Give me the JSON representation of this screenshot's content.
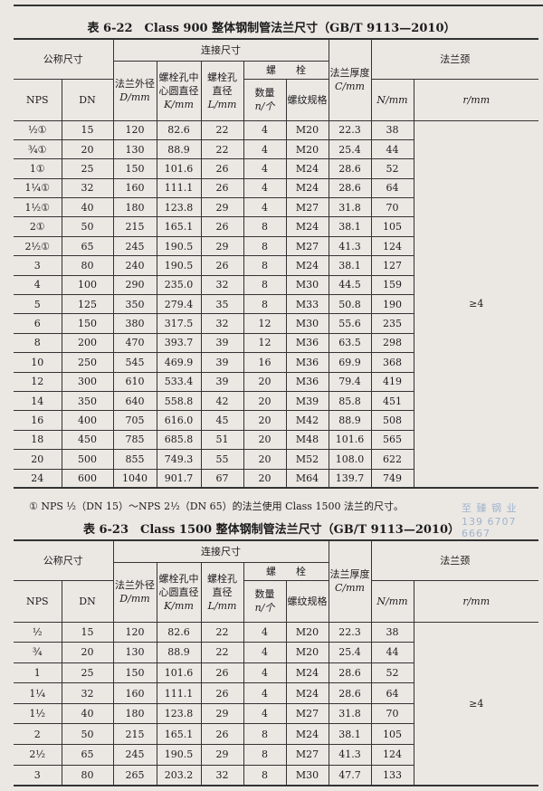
{
  "headers": {
    "nominal": "公称尺寸",
    "nps": "NPS",
    "dn": "DN",
    "connection": "连接尺寸",
    "outer_dia": "法兰外径",
    "outer_dia_unit": "D/mm",
    "bolt_circle_1": "螺栓孔中",
    "bolt_circle_2": "心圆直径",
    "bolt_circle_unit": "K/mm",
    "bolt_hole_1": "螺栓孔",
    "bolt_hole_2": "直径",
    "bolt_hole_unit": "L/mm",
    "bolt": "螺　　栓",
    "qty": "数量",
    "qty_unit": "n/个",
    "thread": "螺纹规格",
    "thickness": "法兰厚度",
    "thickness_unit": "C/mm",
    "neck": "法兰颈",
    "neck_n": "N/mm",
    "neck_r": "r/mm"
  },
  "table1": {
    "title": "表 6-22　Class 900 整体钢制管法兰尺寸（GB/T 9113—2010）",
    "r_value": "≥4",
    "rows": [
      [
        "½①",
        "15",
        "120",
        "82.6",
        "22",
        "4",
        "M20",
        "22.3",
        "38"
      ],
      [
        "¾①",
        "20",
        "130",
        "88.9",
        "22",
        "4",
        "M20",
        "25.4",
        "44"
      ],
      [
        "1①",
        "25",
        "150",
        "101.6",
        "26",
        "4",
        "M24",
        "28.6",
        "52"
      ],
      [
        "1¼①",
        "32",
        "160",
        "111.1",
        "26",
        "4",
        "M24",
        "28.6",
        "64"
      ],
      [
        "1½①",
        "40",
        "180",
        "123.8",
        "29",
        "4",
        "M27",
        "31.8",
        "70"
      ],
      [
        "2①",
        "50",
        "215",
        "165.1",
        "26",
        "8",
        "M24",
        "38.1",
        "105"
      ],
      [
        "2½①",
        "65",
        "245",
        "190.5",
        "29",
        "8",
        "M27",
        "41.3",
        "124"
      ],
      [
        "3",
        "80",
        "240",
        "190.5",
        "26",
        "8",
        "M24",
        "38.1",
        "127"
      ],
      [
        "4",
        "100",
        "290",
        "235.0",
        "32",
        "8",
        "M30",
        "44.5",
        "159"
      ],
      [
        "5",
        "125",
        "350",
        "279.4",
        "35",
        "8",
        "M33",
        "50.8",
        "190"
      ],
      [
        "6",
        "150",
        "380",
        "317.5",
        "32",
        "12",
        "M30",
        "55.6",
        "235"
      ],
      [
        "8",
        "200",
        "470",
        "393.7",
        "39",
        "12",
        "M36",
        "63.5",
        "298"
      ],
      [
        "10",
        "250",
        "545",
        "469.9",
        "39",
        "16",
        "M36",
        "69.9",
        "368"
      ],
      [
        "12",
        "300",
        "610",
        "533.4",
        "39",
        "20",
        "M36",
        "79.4",
        "419"
      ],
      [
        "14",
        "350",
        "640",
        "558.8",
        "42",
        "20",
        "M39",
        "85.8",
        "451"
      ],
      [
        "16",
        "400",
        "705",
        "616.0",
        "45",
        "20",
        "M42",
        "88.9",
        "508"
      ],
      [
        "18",
        "450",
        "785",
        "685.8",
        "51",
        "20",
        "M48",
        "101.6",
        "565"
      ],
      [
        "20",
        "500",
        "855",
        "749.3",
        "55",
        "20",
        "M52",
        "108.0",
        "622"
      ],
      [
        "24",
        "600",
        "1040",
        "901.7",
        "67",
        "20",
        "M64",
        "139.7",
        "749"
      ]
    ],
    "footnote": "①  NPS ½（DN 15）～NPS 2½（DN 65）的法兰使用 Class 1500 法兰的尺寸。"
  },
  "watermark": {
    "line1": "至 臻 钢 业",
    "line2": "139 6707 6667"
  },
  "table2": {
    "title": "表 6-23　Class 1500 整体钢制管法兰尺寸（GB/T 9113—2010）",
    "r_value": "≥4",
    "rows": [
      [
        "½",
        "15",
        "120",
        "82.6",
        "22",
        "4",
        "M20",
        "22.3",
        "38"
      ],
      [
        "¾",
        "20",
        "130",
        "88.9",
        "22",
        "4",
        "M20",
        "25.4",
        "44"
      ],
      [
        "1",
        "25",
        "150",
        "101.6",
        "26",
        "4",
        "M24",
        "28.6",
        "52"
      ],
      [
        "1¼",
        "32",
        "160",
        "111.1",
        "26",
        "4",
        "M24",
        "28.6",
        "64"
      ],
      [
        "1½",
        "40",
        "180",
        "123.8",
        "29",
        "4",
        "M27",
        "31.8",
        "70"
      ],
      [
        "2",
        "50",
        "215",
        "165.1",
        "26",
        "8",
        "M24",
        "38.1",
        "105"
      ],
      [
        "2½",
        "65",
        "245",
        "190.5",
        "29",
        "8",
        "M27",
        "41.3",
        "124"
      ],
      [
        "3",
        "80",
        "265",
        "203.2",
        "32",
        "8",
        "M30",
        "47.7",
        "133"
      ]
    ]
  }
}
